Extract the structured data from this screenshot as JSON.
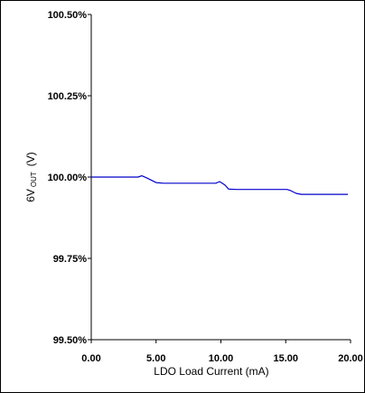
{
  "chart_data": {
    "type": "line",
    "title": "",
    "xlabel": "LDO Load Current  (mA)",
    "ylabel_main": "6V",
    "ylabel_sub": "OUT",
    "ylabel_unit": "(V)",
    "xlim": [
      0,
      20
    ],
    "ylim": [
      99.5,
      100.5
    ],
    "x_ticks": [
      {
        "value": 0,
        "label": "0.00"
      },
      {
        "value": 5,
        "label": "5.00"
      },
      {
        "value": 10,
        "label": "10.00"
      },
      {
        "value": 15,
        "label": "15.00"
      },
      {
        "value": 20,
        "label": "20.00"
      }
    ],
    "y_ticks": [
      {
        "value": 100.5,
        "label": "100.50%"
      },
      {
        "value": 100.25,
        "label": "100.25%"
      },
      {
        "value": 100.0,
        "label": "100.00%"
      },
      {
        "value": 99.75,
        "label": "99.75%"
      },
      {
        "value": 99.5,
        "label": "99.50%"
      }
    ],
    "grid": false,
    "series": [
      {
        "color": "#0000cc",
        "x": [
          0,
          3.6,
          3.9,
          4.3,
          5.0,
          5.6,
          9.6,
          9.9,
          10.3,
          10.6,
          11.2,
          15.1,
          15.4,
          15.8,
          16.2,
          16.8,
          19.8
        ],
        "values": [
          100.0,
          100.0,
          100.004,
          99.997,
          99.983,
          99.981,
          99.981,
          99.986,
          99.976,
          99.963,
          99.962,
          99.962,
          99.958,
          99.95,
          99.947,
          99.947,
          99.947
        ]
      }
    ]
  }
}
